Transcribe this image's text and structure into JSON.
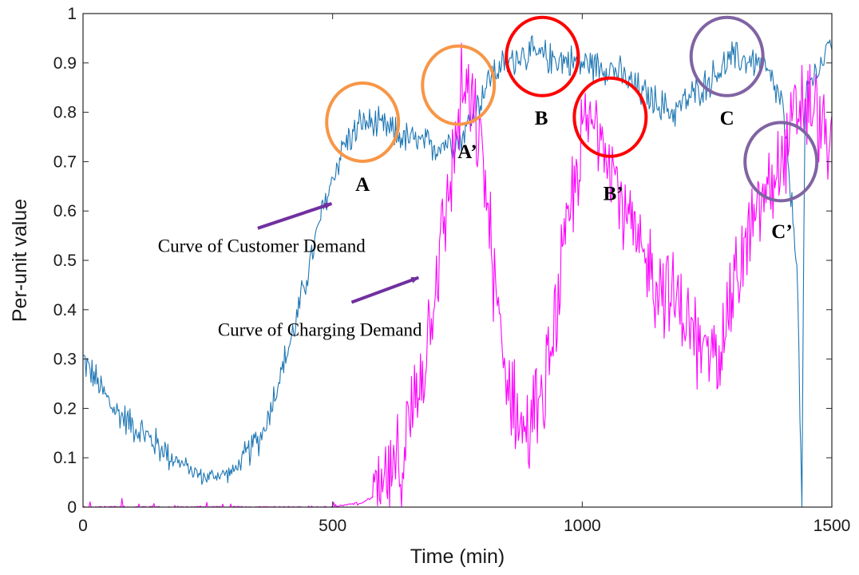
{
  "chart_data": {
    "type": "line",
    "xlabel": "Time (min)",
    "ylabel": "Per-unit value",
    "xlim": [
      0,
      1500
    ],
    "ylim": [
      0,
      1
    ],
    "x_ticks": [
      "0",
      "500",
      "1000",
      "1500"
    ],
    "y_ticks": [
      "0",
      "0.1",
      "0.2",
      "0.3",
      "0.4",
      "0.5",
      "0.6",
      "0.7",
      "0.8",
      "0.9",
      "1"
    ],
    "grid": false,
    "series": [
      {
        "name": "Curve of Customer Demand",
        "color": "#1f77b4",
        "x": [
          0,
          60,
          120,
          180,
          240,
          300,
          360,
          420,
          480,
          520,
          560,
          600,
          640,
          700,
          760,
          820,
          880,
          940,
          1000,
          1060,
          1120,
          1180,
          1240,
          1300,
          1360,
          1400,
          1430,
          1440,
          1445,
          1450,
          1480,
          1500
        ],
        "values": [
          0.3,
          0.2,
          0.15,
          0.1,
          0.06,
          0.07,
          0.15,
          0.35,
          0.6,
          0.73,
          0.78,
          0.77,
          0.75,
          0.73,
          0.75,
          0.88,
          0.92,
          0.91,
          0.9,
          0.89,
          0.84,
          0.8,
          0.85,
          0.91,
          0.9,
          0.82,
          0.5,
          0.0,
          0.7,
          0.85,
          0.9,
          0.95
        ],
        "noise": 0.035
      },
      {
        "name": "Curve of Charging Demand",
        "color": "#ff00ff",
        "x": [
          0,
          240,
          400,
          500,
          560,
          600,
          640,
          680,
          720,
          760,
          800,
          840,
          880,
          920,
          960,
          1000,
          1040,
          1080,
          1120,
          1160,
          1200,
          1240,
          1280,
          1320,
          1360,
          1400,
          1440,
          1480,
          1500
        ],
        "values": [
          0.0,
          0.0,
          0.0,
          0.0,
          0.01,
          0.03,
          0.1,
          0.28,
          0.55,
          0.85,
          0.72,
          0.3,
          0.15,
          0.2,
          0.48,
          0.76,
          0.78,
          0.62,
          0.5,
          0.45,
          0.4,
          0.3,
          0.35,
          0.5,
          0.62,
          0.7,
          0.82,
          0.78,
          0.7
        ],
        "noise": 0.1
      }
    ],
    "annotations": [
      {
        "text": "Curve of Customer Demand",
        "x": 150,
        "y": 0.53
      },
      {
        "text": "Curve of Charging Demand",
        "x": 270,
        "y": 0.36
      }
    ],
    "arrows": [
      {
        "x1": 350,
        "y1": 0.565,
        "x2": 498,
        "y2": 0.615,
        "color": "#7030a0"
      },
      {
        "x1": 538,
        "y1": 0.415,
        "x2": 672,
        "y2": 0.465,
        "color": "#7030a0"
      }
    ],
    "circles": [
      {
        "cx": 560,
        "cy": 0.78,
        "color": "#f79646"
      },
      {
        "cx": 752,
        "cy": 0.855,
        "color": "#f79646"
      },
      {
        "cx": 920,
        "cy": 0.913,
        "color": "#ff0000"
      },
      {
        "cx": 1056,
        "cy": 0.79,
        "color": "#ff0000"
      },
      {
        "cx": 1290,
        "cy": 0.913,
        "color": "#8064a2"
      },
      {
        "cx": 1398,
        "cy": 0.7,
        "color": "#8064a2"
      }
    ],
    "point_labels": [
      {
        "text": "A",
        "x": 560,
        "y": 0.655
      },
      {
        "text": "A’",
        "x": 770,
        "y": 0.722
      },
      {
        "text": "B",
        "x": 918,
        "y": 0.79
      },
      {
        "text": "B’",
        "x": 1062,
        "y": 0.637
      },
      {
        "text": "C",
        "x": 1290,
        "y": 0.79
      },
      {
        "text": "C’",
        "x": 1400,
        "y": 0.56
      }
    ]
  }
}
